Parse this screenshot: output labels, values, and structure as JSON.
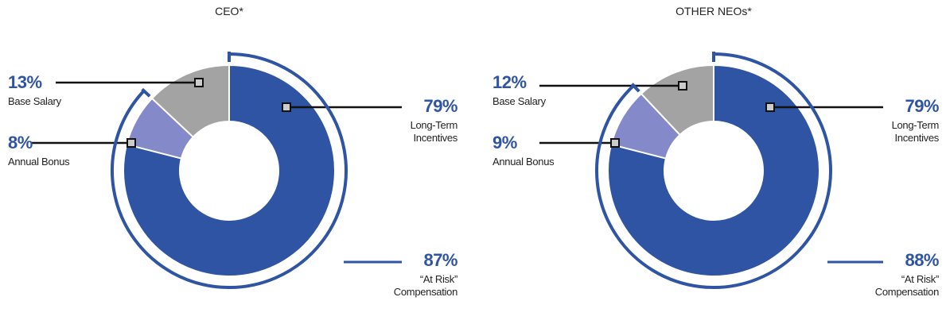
{
  "chart_data": [
    {
      "type": "donut",
      "title": "CEO*",
      "categories": [
        "Long-Term Incentives",
        "Annual Bonus",
        "Base Salary"
      ],
      "values": [
        79,
        8,
        13
      ],
      "value_labels": [
        "79%",
        "8%",
        "13%"
      ],
      "colors": [
        "#2e54a3",
        "#8489c9",
        "#a3a3a3"
      ],
      "annotation": {
        "text": "“At Risk” Compensation",
        "value": 87,
        "value_label": "87%"
      }
    },
    {
      "type": "donut",
      "title": "OTHER NEOs*",
      "categories": [
        "Long-Term Incentives",
        "Annual Bonus",
        "Base Salary"
      ],
      "values": [
        79,
        9,
        12
      ],
      "value_labels": [
        "79%",
        "9%",
        "12%"
      ],
      "colors": [
        "#2e54a3",
        "#8489c9",
        "#a3a3a3"
      ],
      "annotation": {
        "text": "“At Risk” Compensation",
        "value": 88,
        "value_label": "88%"
      }
    }
  ]
}
